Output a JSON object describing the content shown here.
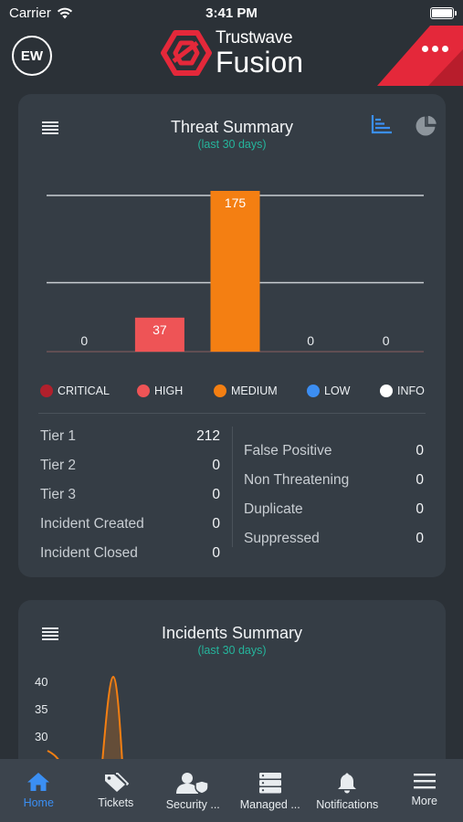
{
  "status_bar": {
    "carrier": "Carrier",
    "time": "3:41 PM"
  },
  "header": {
    "avatar_initials": "EW",
    "brand_line1": "Trustwave",
    "brand_line2": "Fusion",
    "accent": "#e4283a"
  },
  "threat_summary": {
    "title": "Threat Summary",
    "subtitle": "(last 30 days)",
    "legend": [
      {
        "label": "CRITICAL",
        "color": "#b1202c"
      },
      {
        "label": "HIGH",
        "color": "#ee5456"
      },
      {
        "label": "MEDIUM",
        "color": "#f47f12"
      },
      {
        "label": "LOW",
        "color": "#3c8ef2"
      },
      {
        "label": "INFO",
        "color": "#ffffff"
      }
    ],
    "left_stats": [
      {
        "label": "Tier 1",
        "value": "212"
      },
      {
        "label": "Tier 2",
        "value": "0"
      },
      {
        "label": "Tier 3",
        "value": "0"
      },
      {
        "label": "Incident Created",
        "value": "0"
      },
      {
        "label": "Incident Closed",
        "value": "0"
      }
    ],
    "right_stats": [
      {
        "label": "False Positive",
        "value": "0"
      },
      {
        "label": "Non Threatening",
        "value": "0"
      },
      {
        "label": "Duplicate",
        "value": "0"
      },
      {
        "label": "Suppressed",
        "value": "0"
      }
    ]
  },
  "incidents_summary": {
    "title": "Incidents Summary",
    "subtitle": "(last 30 days)"
  },
  "chart_data": [
    {
      "type": "bar",
      "categories": [
        "CRITICAL",
        "HIGH",
        "MEDIUM",
        "LOW",
        "INFO"
      ],
      "values": [
        0,
        37,
        175,
        0,
        0
      ],
      "colors": [
        "#b1202c",
        "#ee5456",
        "#f47f12",
        "#3c8ef2",
        "#ffffff"
      ],
      "ylim": [
        0,
        175
      ],
      "grid": true,
      "legend": "bottom"
    },
    {
      "type": "line",
      "y_ticks": [
        "40",
        "35",
        "30"
      ],
      "ylim_visible": [
        27,
        42
      ],
      "series_color": "#f47f12"
    }
  ],
  "tabbar": [
    {
      "label": "Home",
      "icon": "home-icon",
      "active": true
    },
    {
      "label": "Tickets",
      "icon": "tickets-icon",
      "active": false
    },
    {
      "label": "Security ...",
      "icon": "security-icon",
      "active": false
    },
    {
      "label": "Managed ...",
      "icon": "managed-icon",
      "active": false
    },
    {
      "label": "Notifications",
      "icon": "bell-icon",
      "active": false
    },
    {
      "label": "More",
      "icon": "menu-icon",
      "active": false
    }
  ]
}
